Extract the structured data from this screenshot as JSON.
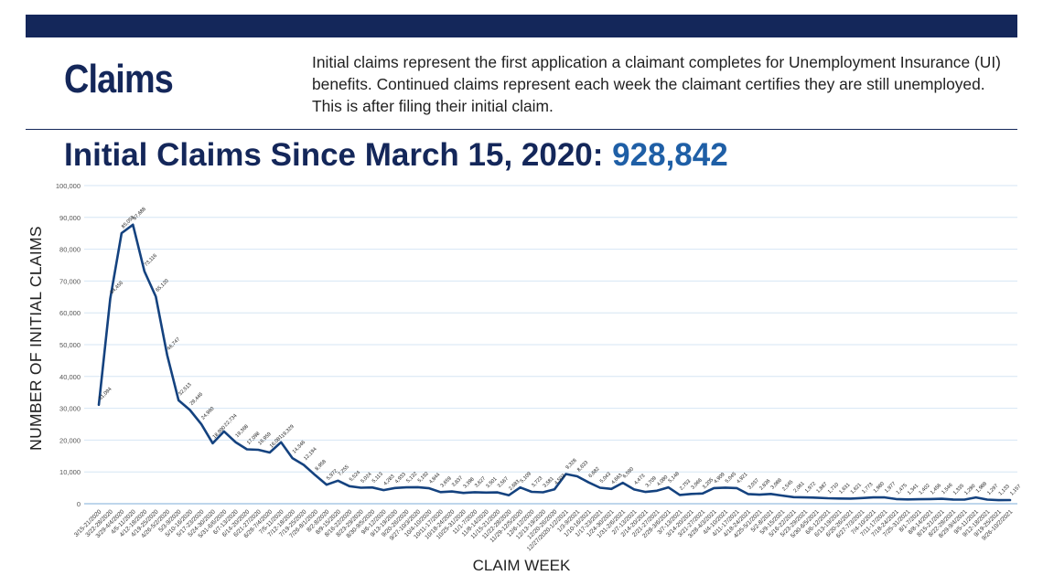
{
  "page": {
    "heading": "Claims",
    "intro": "Initial claims represent the first application a claimant completes for Unemployment Insurance (UI) benefits. Continued claims represent each week the claimant certifies they are still unemployed. This is after filing their initial claim.",
    "headline_label": "Initial Claims Since March 15, 2020:",
    "headline_total": "928,842"
  },
  "chart_data": {
    "type": "line",
    "title": "",
    "xlabel": "CLAIM WEEK",
    "ylabel": "NUMBER OF INITIAL CLAIMS",
    "ylim": [
      0,
      100000
    ],
    "yticks": [
      "0",
      "10,000",
      "20,000",
      "30,000",
      "40,000",
      "50,000",
      "60,000",
      "70,000",
      "80,000",
      "90,000",
      "100,000"
    ],
    "grid": true,
    "line_color": "#14427f",
    "categories": [
      "3/15-21/2020",
      "3/22-28/2020",
      "3/29-4/4/2020",
      "4/5-11/2020",
      "4/12-18/2020",
      "4/19-25/2020",
      "4/26-5/2/2020",
      "5/3-9/2020",
      "5/10-16/2020",
      "5/17-23/2020",
      "5/24-30/2020",
      "5/31-6/6/2020",
      "6/7-13/2020",
      "6/14-20/2020",
      "6/21-27/2020",
      "6/28-7/4/2020",
      "7/5-11/2020",
      "7/12-18/2020",
      "7/19-25/2020",
      "7/26-8/1/2020",
      "8/2-8/2020",
      "8/9-15/2020",
      "8/16-22/2020",
      "8/23-29/2020",
      "8/30-9/5/2020",
      "9/6-12/2020",
      "9/13-19/2020",
      "9/20-26/2020",
      "9/27-10/3/2020",
      "10/4-10/2020",
      "10/11-17/2020",
      "10/18-24/2020",
      "10/25-31/2020",
      "11/1-7/2020",
      "11/8-14/2020",
      "11/15-21/2020",
      "11/22-28/2020",
      "11/29-12/5/2020",
      "12/6-12/2020",
      "12/13-19/2020",
      "12/20-26/2020",
      "12/27/2020-1/2/2021",
      "1/3-9/2021",
      "1/10-16/2021",
      "1/17-23/2021",
      "1/24-30/2021",
      "1/31-2/6/2021",
      "2/7-13/2021",
      "2/14-20/2021",
      "2/21-27/2021",
      "2/28-3/6/2021",
      "3/7-13/2021",
      "3/14-20/2021",
      "3/21-27/2021",
      "3/28-4/3/2021",
      "4/4-10/2021",
      "4/11-17/2021",
      "4/18-24/2021",
      "4/25-5/1/2021",
      "5/2-8/2021",
      "5/9-15/2021",
      "5/16-22/2021",
      "5/23-29/2021",
      "5/30-6/5/2021",
      "6/6-12/2021",
      "6/13-19/2021",
      "6/20-26/2021",
      "6/27-7/3/2021",
      "7/4-10/2021",
      "7/11-17/2021",
      "7/18-24/2021",
      "7/25-31/2021",
      "8/1-7/2021",
      "8/8-14/2021",
      "8/15-21/2021",
      "8/22-28/2021",
      "8/29-9/4/2021",
      "9/5-11/2021",
      "9/12-18/2021",
      "9/19-25/2021",
      "9/26-10/2/2021"
    ],
    "values": [
      31094,
      64456,
      85058,
      87688,
      73116,
      65120,
      46747,
      32513,
      29446,
      24960,
      18990,
      22734,
      19368,
      17098,
      16959,
      16081,
      19329,
      14346,
      12194,
      8958,
      5972,
      7255,
      5524,
      5024,
      5113,
      4283,
      4933,
      5132,
      5192,
      4844,
      3659,
      3837,
      3398,
      3627,
      3501,
      3567,
      2683,
      5109,
      3723,
      3581,
      4503,
      9328,
      8633,
      6682,
      5043,
      4663,
      6590,
      4473,
      3709,
      4080,
      5148,
      2753,
      3066,
      3205,
      4909,
      5045,
      4921,
      3037,
      2836,
      3088,
      2545,
      2061,
      1972,
      1887,
      1710,
      1631,
      1621,
      1773,
      1980,
      1977,
      1475,
      1341,
      1402,
      1456,
      1546,
      1335,
      1280,
      1988,
      1297,
      1133,
      1157
    ],
    "value_labels": [
      "31,094",
      "64,456",
      "85,058",
      "87,688",
      "73,116",
      "65,120",
      "46,747",
      "32,513",
      "29,446",
      "24,960",
      "18,990",
      "22,734",
      "19,368",
      "17,098",
      "16,959",
      "16,081",
      "19,329",
      "14,346",
      "12,194",
      "8,958",
      "5,972",
      "7,255",
      "5,524",
      "5,024",
      "5,113",
      "4,283",
      "4,933",
      "5,132",
      "5,192",
      "4,844",
      "3,659",
      "3,837",
      "3,398",
      "3,627",
      "3,501",
      "3,567",
      "2,683",
      "5,109",
      "3,723",
      "3,581",
      "4,503",
      "9,328",
      "8,633",
      "6,682",
      "5,043",
      "4,663",
      "6,590",
      "4,473",
      "3,709",
      "4,080",
      "5,148",
      "2,753",
      "3,066",
      "3,205",
      "4,909",
      "5,045",
      "4,921",
      "3,037",
      "2,836",
      "3,088",
      "2,545",
      "2,061",
      "1,972",
      "1,887",
      "1,710",
      "1,631",
      "1,621",
      "1,773",
      "1,980",
      "1,977",
      "1,475",
      "1,341",
      "1,402",
      "1,456",
      "1,546",
      "1,335",
      "1,280",
      "1,988",
      "1,297",
      "1,133",
      "1,157"
    ]
  }
}
